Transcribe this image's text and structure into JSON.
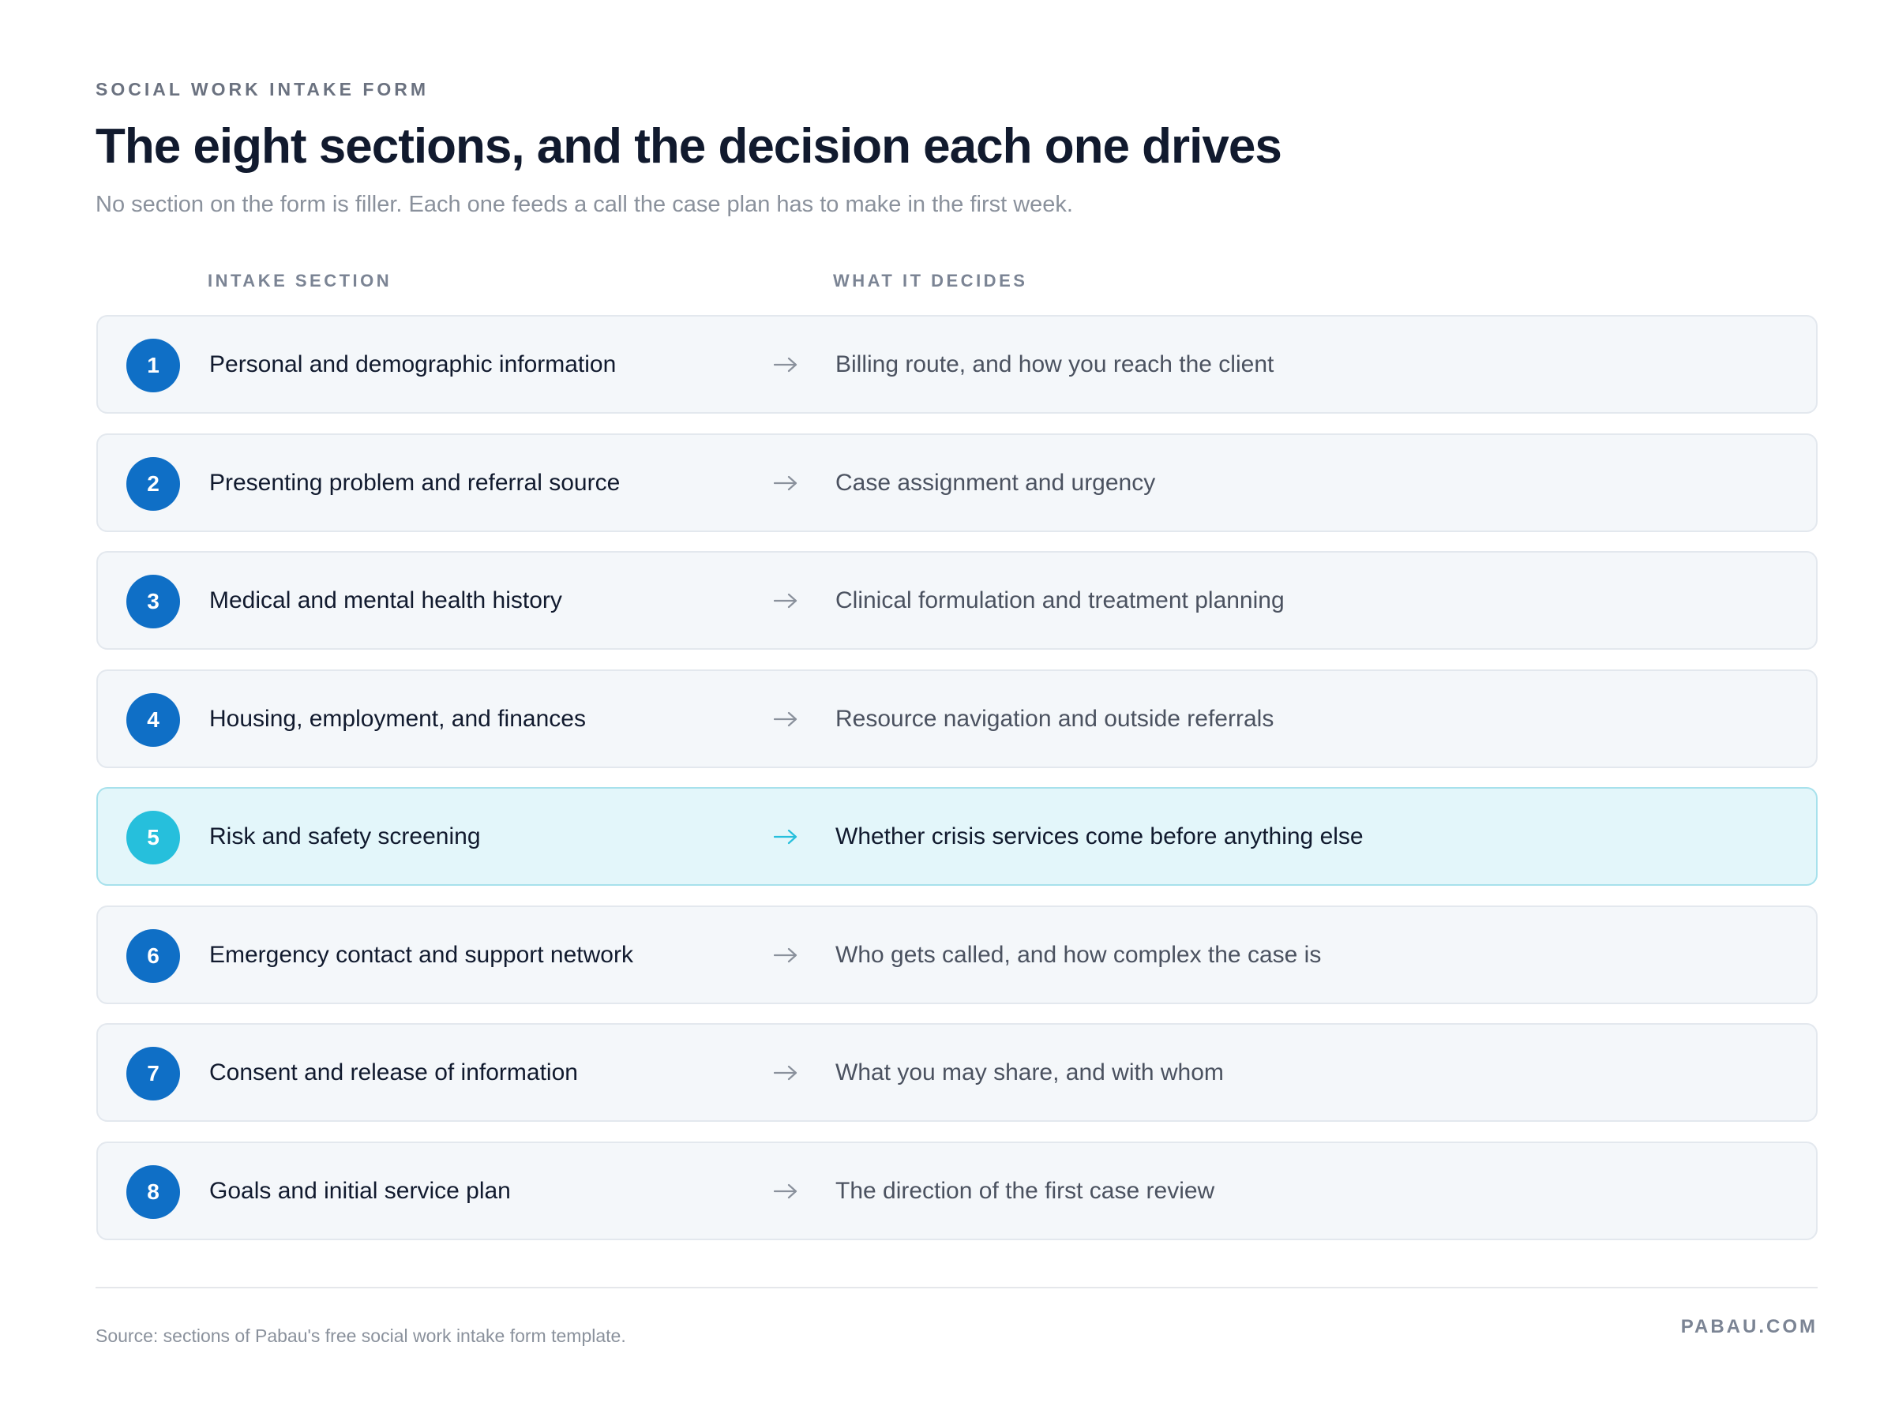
{
  "eyebrow": "SOCIAL WORK INTAKE FORM",
  "title": "The eight sections, and the decision each one drives",
  "subtitle": "No section on the form is filler. Each one feeds a call the case plan has to make in the first week.",
  "columns": [
    "INTAKE SECTION",
    "WHAT IT DECIDES"
  ],
  "rows": [
    {
      "number": "1",
      "section": "Personal and demographic information",
      "decision": "Billing route, and how you reach the client",
      "highlighted": false
    },
    {
      "number": "2",
      "section": "Presenting problem and referral source",
      "decision": "Case assignment and urgency",
      "highlighted": false
    },
    {
      "number": "3",
      "section": "Medical and mental health history",
      "decision": "Clinical formulation and treatment planning",
      "highlighted": false
    },
    {
      "number": "4",
      "section": "Housing, employment, and finances",
      "decision": "Resource navigation and outside referrals",
      "highlighted": false
    },
    {
      "number": "5",
      "section": "Risk and safety screening",
      "decision": "Whether crisis services come before anything else",
      "highlighted": true
    },
    {
      "number": "6",
      "section": "Emergency contact and support network",
      "decision": "Who gets called, and how complex the case is",
      "highlighted": false
    },
    {
      "number": "7",
      "section": "Consent and release of information",
      "decision": "What you may share, and with whom",
      "highlighted": false
    },
    {
      "number": "8",
      "section": "Goals and initial service plan",
      "decision": "The direction of the first case review",
      "highlighted": false
    }
  ],
  "source": "Source: sections of Pabau's free social work intake form template.",
  "brand": "PABAU.COM"
}
